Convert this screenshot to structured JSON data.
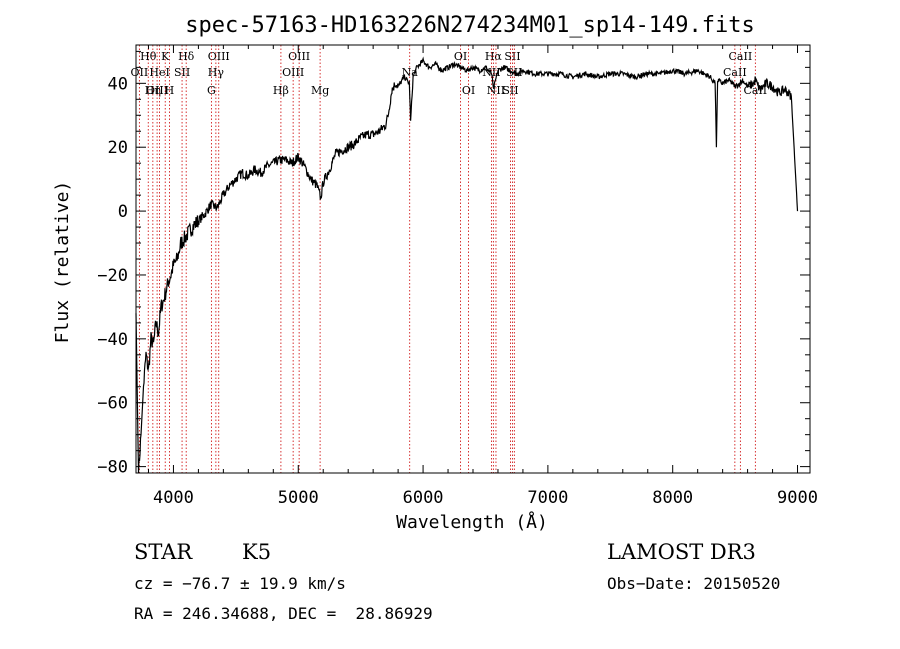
{
  "chart_data": {
    "type": "line",
    "title": "spec-57163-HD163226N274234M01_sp14-149.fits",
    "xlabel": "Wavelength (Å)",
    "ylabel": "Flux (relative)",
    "xlim": [
      3700,
      9100
    ],
    "ylim": [
      -82,
      52
    ],
    "xticks": [
      "4000",
      "5000",
      "6000",
      "7000",
      "8000",
      "9000"
    ],
    "yticks": [
      "-80",
      "-60",
      "-40",
      "-20",
      "0",
      "20",
      "40"
    ],
    "grid": false,
    "series": [
      {
        "color": "#000000",
        "x": [
          3700,
          3720,
          3740,
          3760,
          3780,
          3800,
          3820,
          3840,
          3860,
          3880,
          3900,
          3920,
          3940,
          3960,
          3980,
          4000,
          4030,
          4060,
          4100,
          4150,
          4200,
          4250,
          4300,
          4350,
          4400,
          4450,
          4500,
          4550,
          4600,
          4650,
          4700,
          4750,
          4800,
          4850,
          4900,
          4950,
          5000,
          5050,
          5100,
          5150,
          5180,
          5200,
          5250,
          5300,
          5350,
          5400,
          5450,
          5500,
          5550,
          5600,
          5650,
          5700,
          5720,
          5750,
          5780,
          5800,
          5850,
          5890,
          5900,
          5920,
          5950,
          6000,
          6050,
          6100,
          6150,
          6200,
          6250,
          6300,
          6350,
          6400,
          6450,
          6500,
          6550,
          6563,
          6600,
          6650,
          6700,
          6750,
          6800,
          6900,
          7000,
          7100,
          7200,
          7300,
          7400,
          7500,
          7600,
          7700,
          7800,
          7900,
          8000,
          8100,
          8200,
          8300,
          8340,
          8350,
          8360,
          8400,
          8450,
          8500,
          8540,
          8560,
          8600,
          8650,
          8660,
          8700,
          8750,
          8800,
          8850,
          8900,
          8950,
          9000
        ],
        "y": [
          -32,
          -82,
          -70,
          -55,
          -45,
          -50,
          -40,
          -42,
          -35,
          -38,
          -30,
          -28,
          -25,
          -22,
          -20,
          -17,
          -15,
          -10,
          -8,
          -5,
          -3,
          -1,
          2,
          1,
          5,
          8,
          10,
          12,
          11,
          13,
          12,
          14,
          15,
          16,
          16,
          15,
          17,
          14,
          10,
          8,
          4,
          9,
          13,
          18,
          19,
          20,
          21,
          23,
          24,
          24,
          25,
          27,
          30,
          38,
          40,
          39,
          42,
          40,
          28,
          42,
          45,
          47,
          45,
          46,
          44,
          45,
          46,
          45,
          44,
          45,
          44,
          45,
          43,
          38,
          44,
          45,
          44,
          43,
          44,
          43,
          43,
          43,
          42,
          43,
          42,
          43,
          43,
          42,
          43,
          43,
          44,
          43,
          44,
          42,
          40,
          20,
          41,
          40,
          41,
          39,
          40,
          41,
          39,
          40,
          41,
          38,
          40,
          39,
          37,
          38,
          36,
          0
        ]
      }
    ],
    "emission_lines": [
      {
        "label": "Hθ",
        "x": 3798,
        "row": 1
      },
      {
        "label": "OII",
        "x": 3727,
        "row": 2
      },
      {
        "label": "OIII",
        "x": 3869,
        "row": 3
      },
      {
        "label": "Hη",
        "x": 3835,
        "row": 3
      },
      {
        "label": "K",
        "x": 3934,
        "row": 1
      },
      {
        "label": "HeI",
        "x": 3889,
        "row": 2
      },
      {
        "label": "H",
        "x": 3968,
        "row": 3
      },
      {
        "label": "Hδ",
        "x": 4102,
        "row": 1
      },
      {
        "label": "SII",
        "x": 4069,
        "row": 2
      },
      {
        "label": "OIII",
        "x": 4363,
        "row": 1
      },
      {
        "label": "Hγ",
        "x": 4340,
        "row": 2
      },
      {
        "label": "G",
        "x": 4304,
        "row": 3
      },
      {
        "label": "OIII",
        "x": 5007,
        "row": 1
      },
      {
        "label": "OIII",
        "x": 4959,
        "row": 2
      },
      {
        "label": "Hβ",
        "x": 4861,
        "row": 3
      },
      {
        "label": "Mg",
        "x": 5175,
        "row": 3
      },
      {
        "label": "Na",
        "x": 5893,
        "row": 2
      },
      {
        "label": "OI",
        "x": 6300,
        "row": 1
      },
      {
        "label": "OI",
        "x": 6364,
        "row": 3
      },
      {
        "label": "Hα",
        "x": 6563,
        "row": 1
      },
      {
        "label": "NII",
        "x": 6548,
        "row": 2
      },
      {
        "label": "NII",
        "x": 6584,
        "row": 3
      },
      {
        "label": "SII",
        "x": 6716,
        "row": 1
      },
      {
        "label": "SII",
        "x": 6731,
        "row": 2
      },
      {
        "label": "SII",
        "x": 6700,
        "row": 3
      },
      {
        "label": "CaII",
        "x": 8542,
        "row": 1
      },
      {
        "label": "CaII",
        "x": 8498,
        "row": 2
      },
      {
        "label": "CaII",
        "x": 8662,
        "row": 3
      }
    ]
  },
  "info": {
    "object_class": "STAR",
    "subclass": "K5",
    "survey": "LAMOST DR3",
    "redshift": "cz = −76.7 ± 19.9 km/s",
    "obs_date": "Obs−Date: 20150520",
    "coords": "RA = 246.34688, DEC =  28.86929"
  },
  "colors": {
    "spectrum": "#000000",
    "line_markers": "#cc0000",
    "background": "#ffffff"
  }
}
